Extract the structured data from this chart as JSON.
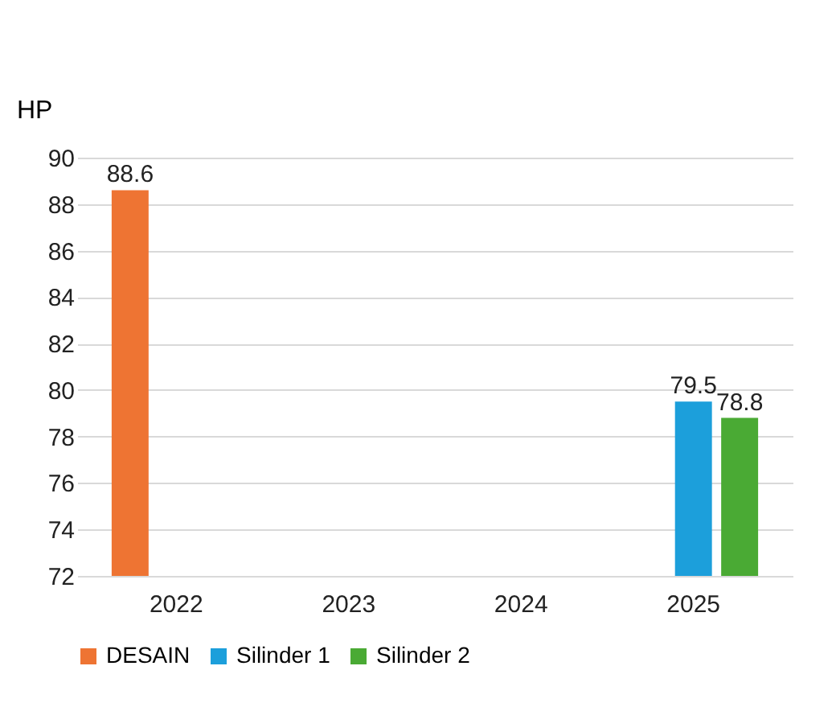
{
  "chart_data": {
    "type": "bar",
    "ylabel": "HP",
    "categories": [
      "2022",
      "2023",
      "2024",
      "2025"
    ],
    "series": [
      {
        "name": "DESAIN",
        "color": "#ee7433",
        "values": [
          88.6,
          null,
          null,
          null
        ]
      },
      {
        "name": "Silinder 1",
        "color": "#1c9fdb",
        "values": [
          null,
          null,
          null,
          79.5
        ]
      },
      {
        "name": "Silinder 2",
        "color": "#4aaa34",
        "values": [
          null,
          null,
          null,
          78.8
        ]
      }
    ],
    "ylim": [
      72,
      90
    ],
    "yticks": [
      72,
      74,
      76,
      78,
      80,
      82,
      84,
      86,
      88,
      90
    ],
    "grid": "y",
    "legend": "bottom",
    "data_labels": true
  }
}
